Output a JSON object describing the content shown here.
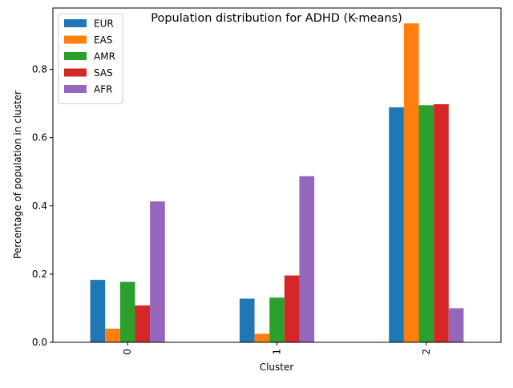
{
  "chart_data": {
    "type": "bar",
    "title": "Population distribution for ADHD (K-means)",
    "xlabel": "Cluster",
    "ylabel": "Percentage of population in cluster",
    "categories": [
      "0",
      "1",
      "2"
    ],
    "ylim": [
      0,
      0.98
    ],
    "yticks": [
      "0.0",
      "0.2",
      "0.4",
      "0.6",
      "0.8"
    ],
    "grid": false,
    "legend_position": "top-left",
    "series": [
      {
        "name": "EUR",
        "color": "#1f77b4",
        "values": [
          0.183,
          0.128,
          0.689
        ]
      },
      {
        "name": "EAS",
        "color": "#ff7f0e",
        "values": [
          0.04,
          0.025,
          0.935
        ]
      },
      {
        "name": "AMR",
        "color": "#2ca02c",
        "values": [
          0.177,
          0.131,
          0.695
        ]
      },
      {
        "name": "SAS",
        "color": "#d62728",
        "values": [
          0.108,
          0.196,
          0.698
        ]
      },
      {
        "name": "AFR",
        "color": "#9467bd",
        "values": [
          0.413,
          0.487,
          0.1
        ]
      }
    ]
  }
}
